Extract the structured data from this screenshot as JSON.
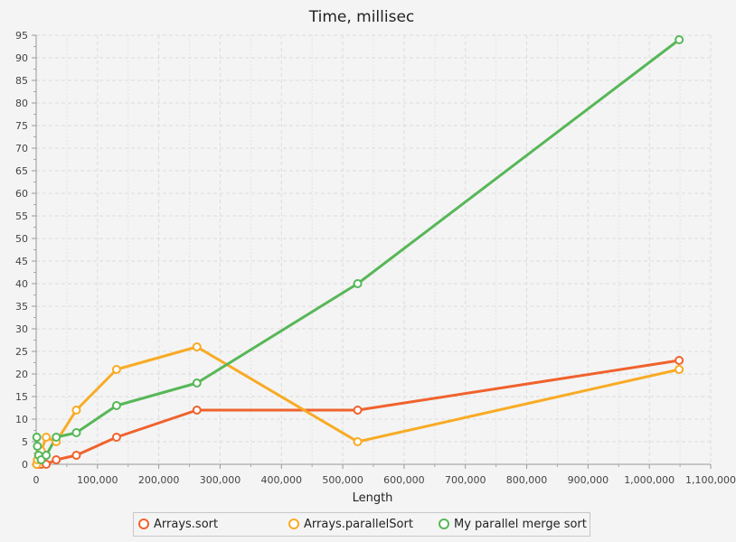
{
  "chart_data": {
    "type": "line",
    "title": "Time, millisec",
    "xlabel": "Length",
    "ylabel": "",
    "xlim": [
      0,
      1100000
    ],
    "ylim": [
      0,
      95
    ],
    "x_ticks": [
      "0",
      "100,000",
      "200,000",
      "300,000",
      "400,000",
      "500,000",
      "600,000",
      "700,000",
      "800,000",
      "900,000",
      "1,000,000",
      "1,100,000"
    ],
    "y_ticks": [
      "0",
      "5",
      "10",
      "15",
      "20",
      "25",
      "30",
      "35",
      "40",
      "45",
      "50",
      "55",
      "60",
      "65",
      "70",
      "75",
      "80",
      "85",
      "90",
      "95"
    ],
    "grid": true,
    "legend_position": "bottom",
    "series": [
      {
        "name": "Arrays.sort",
        "color": "#f0622d",
        "points": [
          [
            1024,
            0
          ],
          [
            2048,
            0
          ],
          [
            4096,
            0
          ],
          [
            8192,
            0
          ],
          [
            16384,
            0
          ],
          [
            32768,
            1
          ],
          [
            65536,
            2
          ],
          [
            131072,
            6
          ],
          [
            262144,
            12
          ],
          [
            524288,
            12
          ],
          [
            1048576,
            23
          ]
        ]
      },
      {
        "name": "Arrays.parallelSort",
        "color": "#f8ab24",
        "points": [
          [
            1024,
            0
          ],
          [
            2048,
            1
          ],
          [
            4096,
            2
          ],
          [
            8192,
            3
          ],
          [
            16384,
            6
          ],
          [
            32768,
            5
          ],
          [
            65536,
            12
          ],
          [
            131072,
            21
          ],
          [
            262144,
            26
          ],
          [
            524288,
            5
          ],
          [
            1048576,
            21
          ]
        ]
      },
      {
        "name": "My parallel merge sort",
        "color": "#57b757",
        "points": [
          [
            1024,
            6
          ],
          [
            2048,
            4
          ],
          [
            4096,
            2
          ],
          [
            8192,
            1
          ],
          [
            16384,
            2
          ],
          [
            32768,
            6
          ],
          [
            65536,
            7
          ],
          [
            131072,
            13
          ],
          [
            262144,
            18
          ],
          [
            524288,
            40
          ],
          [
            1048576,
            94
          ]
        ]
      }
    ]
  }
}
